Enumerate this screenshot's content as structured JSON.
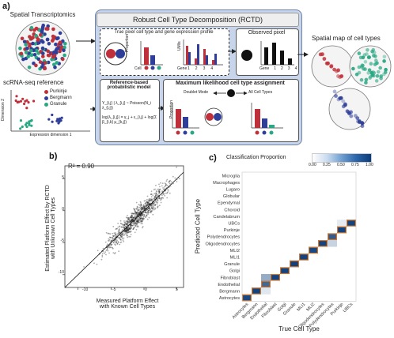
{
  "panel_a": {
    "label": "a)",
    "spatial_title": "Spatial Transcriptomics",
    "scrna_title": "scRNA-seq reference",
    "legend": [
      {
        "name": "Purkinje",
        "color": "#c0303a"
      },
      {
        "name": "Bergmann",
        "color": "#2f3f99"
      },
      {
        "name": "Granule",
        "color": "#2aa884"
      }
    ],
    "dim2_label": "Dimension 2",
    "dim1_label": "Expression dimension 1",
    "rctd_title": "Robust Cell Type Decomposition (RCTD)",
    "true_pixel_title": "True pixel cell type and gene expression profile",
    "cell_label": "Cell",
    "proportion_label": "Proportion",
    "umis_label": "UMIs",
    "gene_ticks": [
      "1",
      "2",
      "3",
      "4"
    ],
    "gene_label": "Gene",
    "observed_title": "Observed pixel",
    "reference_title": "Reference-based probabilistic model",
    "formula_1": "Y_{i,j} | λ_{i,j} ~ Poisson(N_i λ_{i,j})",
    "formula_2": "log(λ_{i,j}) = γ_j + ε_{i,j} + log(Σ β_{i,k} μ_{k,j})",
    "mle_title": "Maximum likelihood cell type assignment",
    "doublet_label": "Doublet Mode",
    "all_types_label": "All Cell Types",
    "spatial_map_title": "Spatial map of cell types"
  },
  "panel_b": {
    "label": "b)",
    "r2": "R² = 0.90",
    "ylabel_1": "Estimated Platform Effect by RCTD",
    "ylabel_2": "with Unknown Cell Types",
    "xlabel_1": "Measured Platform Effect",
    "xlabel_2": "with Known Cell Types",
    "xticks": [
      "-10",
      "-5",
      "0",
      "5"
    ],
    "yticks": [
      "5",
      "0",
      "-5",
      "-10"
    ]
  },
  "panel_c": {
    "label": "c)",
    "legend_title": "Classification Proportion",
    "legend_ticks": [
      "0.00",
      "0.25",
      "0.50",
      "0.75",
      "1.00"
    ],
    "ylabel": "Predicted Cell Type",
    "xlabel": "True Cell Type",
    "colors": {
      "low": "#ffffff",
      "high": "#0b3d7a",
      "diag_border": "#e07b22"
    }
  },
  "chart_data": [
    {
      "type": "scatter",
      "xlabel": "Measured Platform Effect\nwith Known Cell Types",
      "ylabel": "Estimated Platform Effect by RCTD\nwith Unknown Cell Types",
      "annotation": "R² = 0.90",
      "xlim": [
        -12,
        6
      ],
      "ylim": [
        -12,
        7
      ],
      "xticks": [
        -10,
        -5,
        0,
        5
      ],
      "yticks": [
        -10,
        -5,
        0,
        5
      ],
      "identity_line": true,
      "point_cloud": {
        "center": [
          -1,
          -1
        ],
        "slope": 1.0,
        "spread": 1.1,
        "n": 900
      }
    },
    {
      "type": "heatmap",
      "x_categories": [
        "Astrocytes",
        "Bergmann",
        "Endothelial",
        "Fibroblast",
        "Golgi",
        "Granule",
        "MLI1",
        "MLI2",
        "Oligodendrocytes",
        "Polydendrocytes",
        "Purkinje",
        "UBCs"
      ],
      "y_categories": [
        "Microglia",
        "Macrophages",
        "Lugaro",
        "Globular",
        "Ependymal",
        "Choroid",
        "Candelabrum",
        "UBCs",
        "Purkinje",
        "Polydendrocytes",
        "Oligodendrocytes",
        "MLI2",
        "MLI1",
        "Granule",
        "Golgi",
        "Fibroblast",
        "Endothelial",
        "Bergmann",
        "Astrocytes"
      ],
      "value_range": [
        0,
        1
      ],
      "cells": [
        {
          "x": "Astrocytes",
          "y": "Astrocytes",
          "v": 0.92
        },
        {
          "x": "Bergmann",
          "y": "Bergmann",
          "v": 0.95
        },
        {
          "x": "Endothelial",
          "y": "Endothelial",
          "v": 0.7
        },
        {
          "x": "Endothelial",
          "y": "Fibroblast",
          "v": 0.3
        },
        {
          "x": "Fibroblast",
          "y": "Fibroblast",
          "v": 0.95
        },
        {
          "x": "Golgi",
          "y": "Golgi",
          "v": 0.95
        },
        {
          "x": "Granule",
          "y": "Granule",
          "v": 0.96
        },
        {
          "x": "MLI1",
          "y": "MLI1",
          "v": 0.95
        },
        {
          "x": "MLI2",
          "y": "MLI2",
          "v": 0.92
        },
        {
          "x": "Oligodendrocytes",
          "y": "Oligodendrocytes",
          "v": 0.95
        },
        {
          "x": "Polydendrocytes",
          "y": "Polydendrocytes",
          "v": 0.78
        },
        {
          "x": "Polydendrocytes",
          "y": "Oligodendrocytes",
          "v": 0.12
        },
        {
          "x": "Purkinje",
          "y": "Purkinje",
          "v": 0.95
        },
        {
          "x": "UBCs",
          "y": "UBCs",
          "v": 0.95
        },
        {
          "x": "Purkinje",
          "y": "UBCs",
          "v": 0.04
        },
        {
          "x": "Endothelial",
          "y": "Bergmann",
          "v": 0.05
        }
      ]
    }
  ]
}
